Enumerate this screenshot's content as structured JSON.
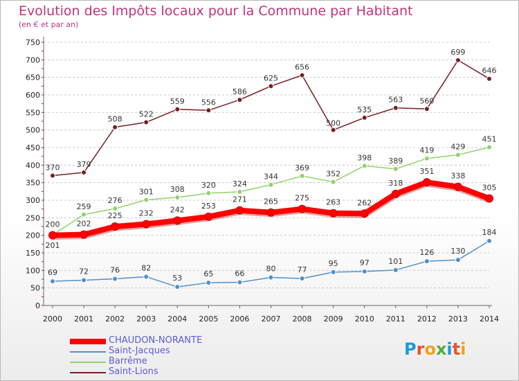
{
  "title": "Evolution des Impôts locaux pour la Commune par Habitant",
  "subtitle": "(en € et par an)",
  "logo": {
    "text": "Proxiti",
    "letters": [
      {
        "char": "P",
        "color": "#1a9ad6"
      },
      {
        "char": "r",
        "color": "#e8542a"
      },
      {
        "char": "o",
        "color": "#f0a21b"
      },
      {
        "char": "x",
        "color": "#4cae3f"
      },
      {
        "char": "i",
        "color": "#1a9ad6"
      },
      {
        "char": "t",
        "color": "#e8542a"
      },
      {
        "char": "i",
        "color": "#f0a21b"
      }
    ]
  },
  "chart_data": {
    "type": "line",
    "title": "Evolution des Impôts locaux pour la Commune par Habitant",
    "subtitle": "(en € et par an)",
    "x": [
      "2000",
      "2001",
      "2002",
      "2003",
      "2004",
      "2005",
      "2006",
      "2007",
      "2008",
      "2009",
      "2010",
      "2011",
      "2012",
      "2013",
      "2014"
    ],
    "ylim": [
      0,
      750
    ],
    "yticks": [
      0,
      50,
      100,
      150,
      200,
      250,
      300,
      350,
      400,
      450,
      500,
      550,
      600,
      650,
      700,
      750
    ],
    "grid": "horizontal dashed",
    "legend_position": "bottom-left",
    "series": [
      {
        "name": "Saint-Lions",
        "color": "#7a1e22",
        "values": [
          370,
          379,
          508,
          522,
          559,
          556,
          586,
          625,
          656,
          500,
          535,
          563,
          560,
          699,
          646
        ]
      },
      {
        "name": "Barrême",
        "color": "#8fd46a",
        "values": [
          201,
          259,
          276,
          301,
          308,
          320,
          324,
          344,
          369,
          352,
          398,
          389,
          419,
          429,
          451
        ]
      },
      {
        "name": "Saint-Jacques",
        "color": "#4d90cc",
        "values": [
          69,
          72,
          76,
          82,
          53,
          65,
          66,
          80,
          77,
          95,
          97,
          101,
          126,
          130,
          184
        ]
      },
      {
        "name": "CHAUDON-NORANTE",
        "color": "#ff0000",
        "values": [
          200,
          202,
          225,
          232,
          242,
          253,
          271,
          265,
          275,
          263,
          262,
          318,
          351,
          338,
          305
        ]
      }
    ],
    "legend_order": [
      "CHAUDON-NORANTE",
      "Saint-Jacques",
      "Barrême",
      "Saint-Lions"
    ]
  }
}
